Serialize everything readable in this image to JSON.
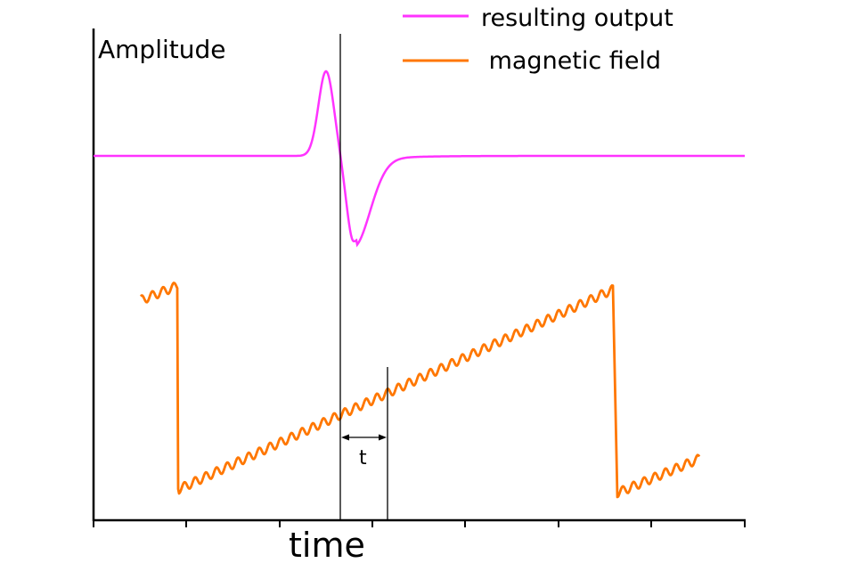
{
  "y_label": "Amplitude",
  "x_label": "time",
  "interval_label": "t",
  "legend": [
    {
      "label": "resulting output",
      "color": "#ff33ff"
    },
    {
      "label": " magnetic field",
      "color": "#ff7700"
    }
  ],
  "colors": {
    "axis": "#000000",
    "output": "#ff33ff",
    "field": "#ff7700",
    "marker": "#000000"
  }
}
